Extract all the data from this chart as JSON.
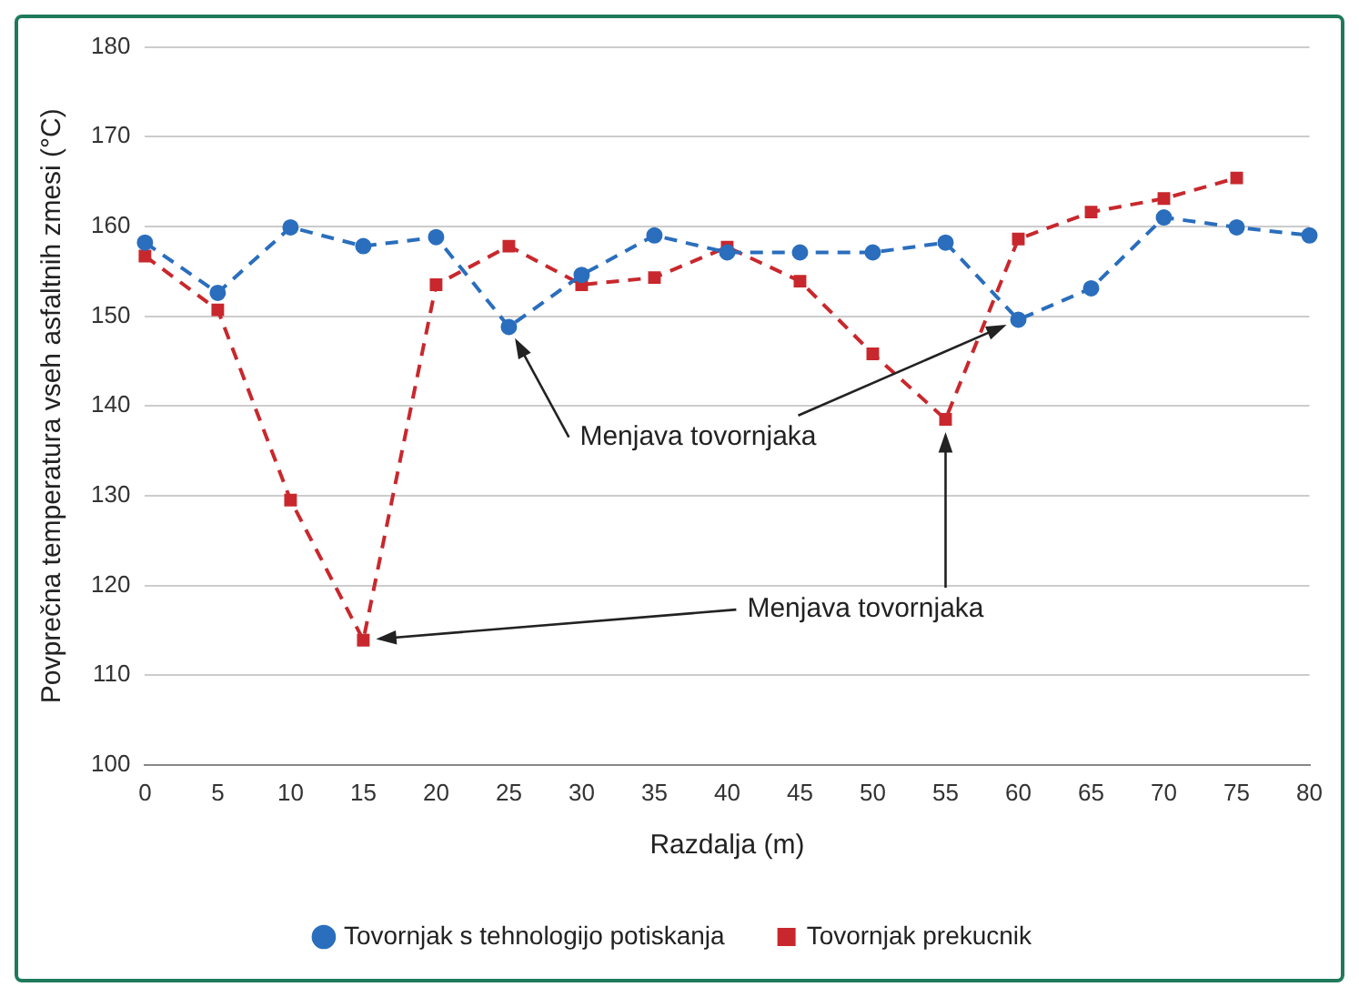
{
  "chart_data": {
    "type": "line",
    "xlabel": "Razdalja (m)",
    "ylabel": "Povprečna temperatura vseh asfaltnih zmesi (°C)",
    "categories": [
      "0",
      "5",
      "10",
      "15",
      "20",
      "25",
      "30",
      "35",
      "40",
      "45",
      "50",
      "55",
      "60",
      "65",
      "70",
      "75",
      "80"
    ],
    "series": [
      {
        "name": "Tovornjak prekucnik",
        "color": "#c8282d",
        "marker": "square",
        "values": [
          156.7,
          150.7,
          129.5,
          113.9,
          153.5,
          157.8,
          153.5,
          154.3,
          157.7,
          153.9,
          145.8,
          138.5,
          158.6,
          161.6,
          163.1,
          165.4,
          null
        ]
      },
      {
        "name": "Tovornjak s tehnologijo potiskanja",
        "color": "#2a6ebd",
        "marker": "circle",
        "values": [
          158.2,
          152.6,
          159.9,
          157.8,
          158.8,
          148.8,
          154.6,
          159.0,
          157.1,
          157.1,
          157.1,
          158.2,
          149.6,
          153.1,
          161.0,
          159.9,
          159.0
        ]
      }
    ],
    "ylim": [
      100,
      180
    ],
    "yticks": [
      100,
      110,
      120,
      130,
      140,
      150,
      160,
      170,
      180
    ],
    "grid": "y",
    "legend": "bottom",
    "line_style": "dashed",
    "annotations": [
      {
        "text": "Menjava tovornjaka",
        "x": "25",
        "y": 148.8
      },
      {
        "text": "Menjava tovornjaka",
        "x": "55",
        "y": 138.5
      }
    ]
  }
}
